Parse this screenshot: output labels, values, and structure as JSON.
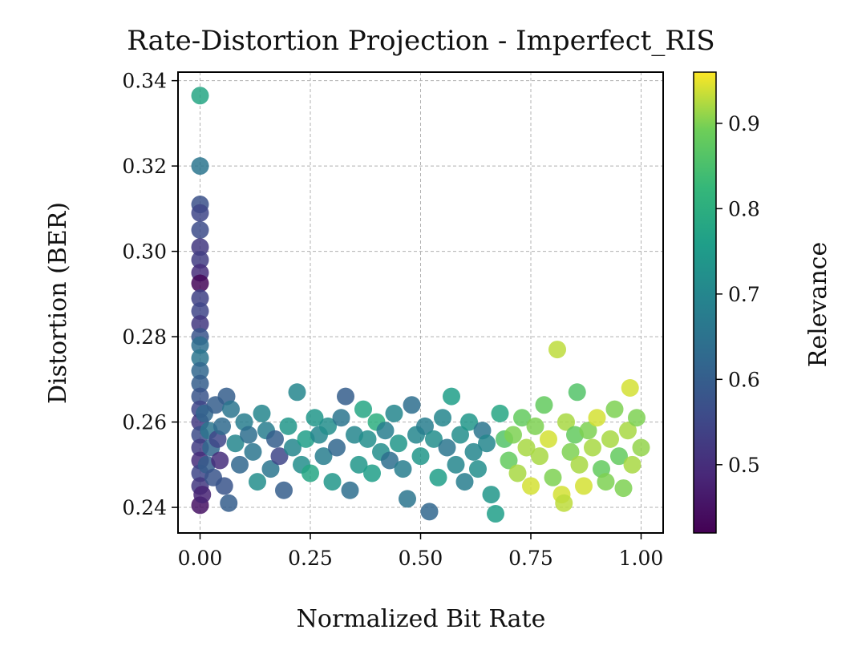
{
  "chart_data": {
    "type": "scatter",
    "title": "Rate-Distortion Projection - Imperfect_RIS",
    "xlabel": "Normalized Bit Rate",
    "ylabel": "Distortion (BER)",
    "xlim": [
      -0.05,
      1.05
    ],
    "ylim": [
      0.234,
      0.342
    ],
    "xticks": [
      0.0,
      0.25,
      0.5,
      0.75,
      1.0
    ],
    "xtick_labels": [
      "0.00",
      "0.25",
      "0.50",
      "0.75",
      "1.00"
    ],
    "yticks": [
      0.24,
      0.26,
      0.28,
      0.3,
      0.32,
      0.34
    ],
    "ytick_labels": [
      "0.24",
      "0.26",
      "0.28",
      "0.30",
      "0.32",
      "0.34"
    ],
    "grid": true,
    "colormap": "viridis",
    "colorbar": {
      "label": "Relevance",
      "range": [
        0.42,
        0.96
      ],
      "ticks": [
        0.5,
        0.6,
        0.7,
        0.8,
        0.9
      ],
      "tick_labels": [
        "0.5",
        "0.6",
        "0.7",
        "0.8",
        "0.9"
      ]
    },
    "points": [
      [
        0.0,
        0.3365,
        0.78
      ],
      [
        0.0,
        0.32,
        0.66
      ],
      [
        0.0,
        0.311,
        0.57
      ],
      [
        0.0,
        0.309,
        0.55
      ],
      [
        0.0,
        0.305,
        0.56
      ],
      [
        0.0,
        0.301,
        0.52
      ],
      [
        0.0,
        0.298,
        0.53
      ],
      [
        0.0,
        0.295,
        0.5
      ],
      [
        0.0,
        0.2925,
        0.43
      ],
      [
        0.0,
        0.289,
        0.54
      ],
      [
        0.0,
        0.286,
        0.55
      ],
      [
        0.0,
        0.283,
        0.52
      ],
      [
        0.0,
        0.28,
        0.58
      ],
      [
        0.0,
        0.278,
        0.64
      ],
      [
        0.0,
        0.275,
        0.66
      ],
      [
        0.0,
        0.272,
        0.62
      ],
      [
        0.0,
        0.269,
        0.6
      ],
      [
        0.0,
        0.266,
        0.58
      ],
      [
        0.0,
        0.263,
        0.55
      ],
      [
        0.0,
        0.26,
        0.52
      ],
      [
        0.0,
        0.257,
        0.56
      ],
      [
        0.0,
        0.254,
        0.53
      ],
      [
        0.0,
        0.251,
        0.5
      ],
      [
        0.0,
        0.248,
        0.55
      ],
      [
        0.0,
        0.245,
        0.52
      ],
      [
        0.0,
        0.2405,
        0.45
      ],
      [
        0.005,
        0.243,
        0.48
      ],
      [
        0.01,
        0.262,
        0.62
      ],
      [
        0.015,
        0.25,
        0.6
      ],
      [
        0.02,
        0.258,
        0.66
      ],
      [
        0.025,
        0.254,
        0.62
      ],
      [
        0.03,
        0.247,
        0.58
      ],
      [
        0.035,
        0.264,
        0.6
      ],
      [
        0.04,
        0.256,
        0.55
      ],
      [
        0.045,
        0.251,
        0.5
      ],
      [
        0.05,
        0.259,
        0.63
      ],
      [
        0.055,
        0.245,
        0.58
      ],
      [
        0.06,
        0.266,
        0.6
      ],
      [
        0.065,
        0.241,
        0.6
      ],
      [
        0.07,
        0.263,
        0.66
      ],
      [
        0.08,
        0.255,
        0.7
      ],
      [
        0.09,
        0.25,
        0.62
      ],
      [
        0.1,
        0.26,
        0.68
      ],
      [
        0.11,
        0.257,
        0.64
      ],
      [
        0.12,
        0.253,
        0.66
      ],
      [
        0.13,
        0.246,
        0.72
      ],
      [
        0.14,
        0.262,
        0.7
      ],
      [
        0.15,
        0.258,
        0.68
      ],
      [
        0.16,
        0.249,
        0.66
      ],
      [
        0.17,
        0.256,
        0.6
      ],
      [
        0.18,
        0.252,
        0.55
      ],
      [
        0.19,
        0.244,
        0.6
      ],
      [
        0.2,
        0.259,
        0.74
      ],
      [
        0.21,
        0.254,
        0.7
      ],
      [
        0.22,
        0.267,
        0.7
      ],
      [
        0.23,
        0.25,
        0.72
      ],
      [
        0.24,
        0.256,
        0.76
      ],
      [
        0.25,
        0.248,
        0.78
      ],
      [
        0.26,
        0.261,
        0.74
      ],
      [
        0.27,
        0.257,
        0.7
      ],
      [
        0.28,
        0.252,
        0.68
      ],
      [
        0.29,
        0.259,
        0.72
      ],
      [
        0.3,
        0.246,
        0.74
      ],
      [
        0.31,
        0.254,
        0.62
      ],
      [
        0.32,
        0.261,
        0.66
      ],
      [
        0.33,
        0.266,
        0.6
      ],
      [
        0.34,
        0.244,
        0.64
      ],
      [
        0.35,
        0.257,
        0.7
      ],
      [
        0.36,
        0.25,
        0.74
      ],
      [
        0.37,
        0.263,
        0.78
      ],
      [
        0.38,
        0.256,
        0.72
      ],
      [
        0.39,
        0.248,
        0.76
      ],
      [
        0.4,
        0.26,
        0.8
      ],
      [
        0.41,
        0.253,
        0.72
      ],
      [
        0.42,
        0.258,
        0.68
      ],
      [
        0.43,
        0.251,
        0.64
      ],
      [
        0.44,
        0.262,
        0.7
      ],
      [
        0.45,
        0.255,
        0.74
      ],
      [
        0.46,
        0.249,
        0.68
      ],
      [
        0.47,
        0.242,
        0.66
      ],
      [
        0.48,
        0.264,
        0.64
      ],
      [
        0.49,
        0.257,
        0.7
      ],
      [
        0.5,
        0.252,
        0.74
      ],
      [
        0.51,
        0.259,
        0.68
      ],
      [
        0.52,
        0.239,
        0.62
      ],
      [
        0.53,
        0.256,
        0.72
      ],
      [
        0.54,
        0.247,
        0.76
      ],
      [
        0.55,
        0.261,
        0.7
      ],
      [
        0.56,
        0.254,
        0.66
      ],
      [
        0.57,
        0.266,
        0.76
      ],
      [
        0.58,
        0.25,
        0.7
      ],
      [
        0.59,
        0.257,
        0.72
      ],
      [
        0.6,
        0.246,
        0.68
      ],
      [
        0.61,
        0.26,
        0.74
      ],
      [
        0.62,
        0.253,
        0.7
      ],
      [
        0.63,
        0.249,
        0.72
      ],
      [
        0.64,
        0.258,
        0.66
      ],
      [
        0.65,
        0.255,
        0.7
      ],
      [
        0.66,
        0.243,
        0.74
      ],
      [
        0.67,
        0.2385,
        0.76
      ],
      [
        0.68,
        0.262,
        0.78
      ],
      [
        0.69,
        0.256,
        0.86
      ],
      [
        0.7,
        0.251,
        0.88
      ],
      [
        0.71,
        0.257,
        0.9
      ],
      [
        0.72,
        0.248,
        0.92
      ],
      [
        0.73,
        0.261,
        0.88
      ],
      [
        0.74,
        0.254,
        0.92
      ],
      [
        0.75,
        0.245,
        0.94
      ],
      [
        0.76,
        0.259,
        0.9
      ],
      [
        0.77,
        0.252,
        0.92
      ],
      [
        0.78,
        0.264,
        0.88
      ],
      [
        0.79,
        0.256,
        0.94
      ],
      [
        0.8,
        0.247,
        0.9
      ],
      [
        0.81,
        0.277,
        0.93
      ],
      [
        0.82,
        0.243,
        0.94
      ],
      [
        0.825,
        0.241,
        0.93
      ],
      [
        0.83,
        0.26,
        0.92
      ],
      [
        0.84,
        0.253,
        0.9
      ],
      [
        0.85,
        0.257,
        0.88
      ],
      [
        0.855,
        0.267,
        0.86
      ],
      [
        0.86,
        0.25,
        0.92
      ],
      [
        0.87,
        0.245,
        0.94
      ],
      [
        0.88,
        0.258,
        0.9
      ],
      [
        0.89,
        0.254,
        0.92
      ],
      [
        0.9,
        0.261,
        0.94
      ],
      [
        0.91,
        0.249,
        0.88
      ],
      [
        0.92,
        0.246,
        0.9
      ],
      [
        0.93,
        0.256,
        0.92
      ],
      [
        0.94,
        0.263,
        0.9
      ],
      [
        0.95,
        0.252,
        0.88
      ],
      [
        0.96,
        0.2445,
        0.9
      ],
      [
        0.97,
        0.258,
        0.92
      ],
      [
        0.975,
        0.268,
        0.94
      ],
      [
        0.98,
        0.25,
        0.92
      ],
      [
        0.99,
        0.261,
        0.9
      ],
      [
        1.0,
        0.254,
        0.91
      ]
    ]
  }
}
